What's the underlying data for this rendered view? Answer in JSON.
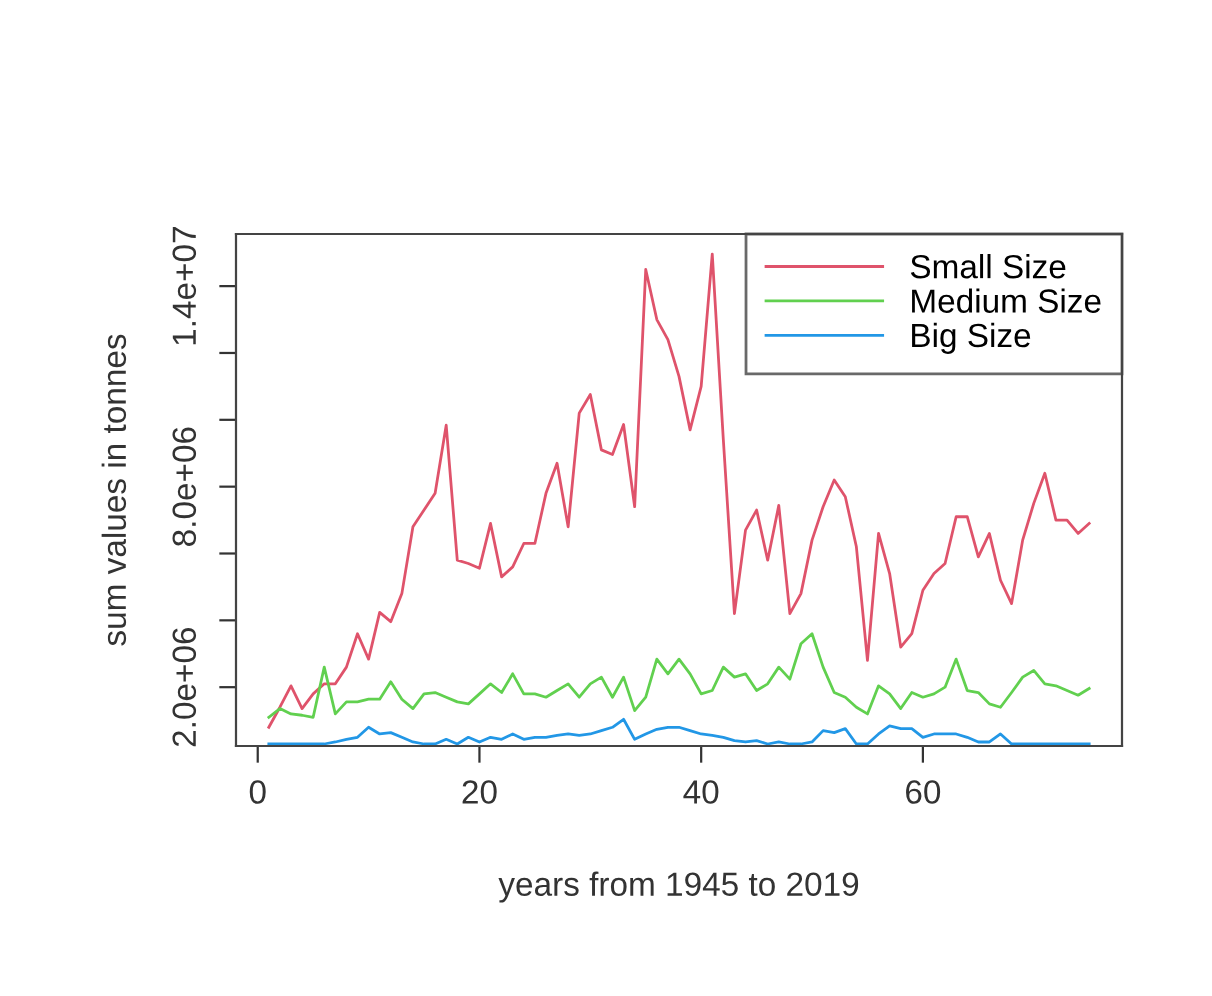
{
  "chart_data": {
    "type": "line",
    "xlabel": "years from 1945 to 2019",
    "ylabel": "sum values in tonnes",
    "x": [
      1,
      2,
      3,
      4,
      5,
      6,
      7,
      8,
      9,
      10,
      11,
      12,
      13,
      14,
      15,
      16,
      17,
      18,
      19,
      20,
      21,
      22,
      23,
      24,
      25,
      26,
      27,
      28,
      29,
      30,
      31,
      32,
      33,
      34,
      35,
      36,
      37,
      38,
      39,
      40,
      41,
      42,
      43,
      44,
      45,
      46,
      47,
      48,
      49,
      50,
      51,
      52,
      53,
      54,
      55,
      56,
      57,
      58,
      59,
      60,
      61,
      62,
      63,
      64,
      65,
      66,
      67,
      68,
      69,
      70,
      71,
      72,
      73,
      74,
      75
    ],
    "series": [
      {
        "name": "Small Size",
        "color": "#df536b",
        "values": [
          800000.0,
          1400000.0,
          2040000.0,
          1360000.0,
          1800000.0,
          2100000.0,
          2100000.0,
          2600000.0,
          3600000.0,
          2840000.0,
          4240000.0,
          3960000.0,
          4800000.0,
          6800000.0,
          7300000.0,
          7800000.0,
          9840000.0,
          5800000.0,
          5700000.0,
          5560000.0,
          6900000.0,
          5300000.0,
          5600000.0,
          6300000.0,
          6300000.0,
          7800000.0,
          8700000.0,
          6800000.0,
          10200000.0,
          10760000.0,
          9100000.0,
          8960000.0,
          9860000.0,
          7400000.0,
          14500000.0,
          13000000.0,
          12400000.0,
          11300000.0,
          9700000.0,
          11000000.0,
          14960000.0,
          9400000.0,
          4200000.0,
          6700000.0,
          7300000.0,
          5800000.0,
          7440000.0,
          4200000.0,
          4800000.0,
          6400000.0,
          7400000.0,
          8200000.0,
          7700000.0,
          6200000.0,
          2800000.0,
          6600000.0,
          5400000.0,
          3200000.0,
          3600000.0,
          4900000.0,
          5400000.0,
          5700000.0,
          7100000.0,
          7100000.0,
          5900000.0,
          6600000.0,
          5200000.0,
          4500000.0,
          6400000.0,
          7500000.0,
          8400000.0,
          7000000.0,
          7000000.0,
          6600000.0,
          6900000.0
        ]
      },
      {
        "name": "Medium Size",
        "color": "#61d04f",
        "values": [
          1100000.0,
          1360000.0,
          1200000.0,
          1160000.0,
          1100000.0,
          2600000.0,
          1200000.0,
          1560000.0,
          1560000.0,
          1640000.0,
          1640000.0,
          2160000.0,
          1640000.0,
          1360000.0,
          1800000.0,
          1840000.0,
          1700000.0,
          1560000.0,
          1500000.0,
          1800000.0,
          2100000.0,
          1840000.0,
          2400000.0,
          1800000.0,
          1800000.0,
          1700000.0,
          1900000.0,
          2100000.0,
          1700000.0,
          2100000.0,
          2300000.0,
          1700000.0,
          2300000.0,
          1300000.0,
          1700000.0,
          2840000.0,
          2400000.0,
          2840000.0,
          2400000.0,
          1800000.0,
          1900000.0,
          2600000.0,
          2300000.0,
          2400000.0,
          1900000.0,
          2100000.0,
          2600000.0,
          2240000.0,
          3300000.0,
          3600000.0,
          2600000.0,
          1840000.0,
          1700000.0,
          1400000.0,
          1200000.0,
          2040000.0,
          1800000.0,
          1360000.0,
          1840000.0,
          1700000.0,
          1800000.0,
          2000000.0,
          2840000.0,
          1900000.0,
          1840000.0,
          1500000.0,
          1400000.0,
          1840000.0,
          2300000.0,
          2500000.0,
          2100000.0,
          2040000.0,
          1900000.0,
          1760000.0,
          1960000.0
        ]
      },
      {
        "name": "Big Size",
        "color": "#2297e6",
        "values": [
          300000.0,
          300000.0,
          300000.0,
          300000.0,
          300000.0,
          300000.0,
          360000.0,
          440000.0,
          500000.0,
          800000.0,
          600000.0,
          640000.0,
          500000.0,
          360000.0,
          300000.0,
          300000.0,
          440000.0,
          300000.0,
          500000.0,
          360000.0,
          500000.0,
          440000.0,
          600000.0,
          440000.0,
          500000.0,
          500000.0,
          560000.0,
          600000.0,
          560000.0,
          600000.0,
          700000.0,
          800000.0,
          1040000.0,
          440000.0,
          600000.0,
          740000.0,
          800000.0,
          800000.0,
          700000.0,
          600000.0,
          560000.0,
          500000.0,
          400000.0,
          360000.0,
          400000.0,
          300000.0,
          360000.0,
          300000.0,
          300000.0,
          360000.0,
          700000.0,
          640000.0,
          760000.0,
          300000.0,
          300000.0,
          600000.0,
          840000.0,
          760000.0,
          760000.0,
          500000.0,
          600000.0,
          600000.0,
          600000.0,
          500000.0,
          360000.0,
          360000.0,
          600000.0,
          300000.0,
          300000.0,
          300000.0,
          300000.0,
          300000.0,
          300000.0,
          300000.0,
          300000.0
        ]
      }
    ],
    "xlim": [
      -1.96,
      77.96
    ],
    "xticks": [
      0,
      20,
      40,
      60
    ],
    "ylim": [
      240000.0,
      15560000.0
    ],
    "yticks": [
      {
        "value": 2000000,
        "label": "2.0e+06"
      },
      {
        "value": 4000000,
        "label": null
      },
      {
        "value": 6000000,
        "label": null
      },
      {
        "value": 8000000,
        "label": "8.0e+06"
      },
      {
        "value": 10000000,
        "label": null
      },
      {
        "value": 12000000,
        "label": null
      },
      {
        "value": 14000000,
        "label": "1.4e+07"
      }
    ],
    "legend": "top right",
    "grid": false
  }
}
